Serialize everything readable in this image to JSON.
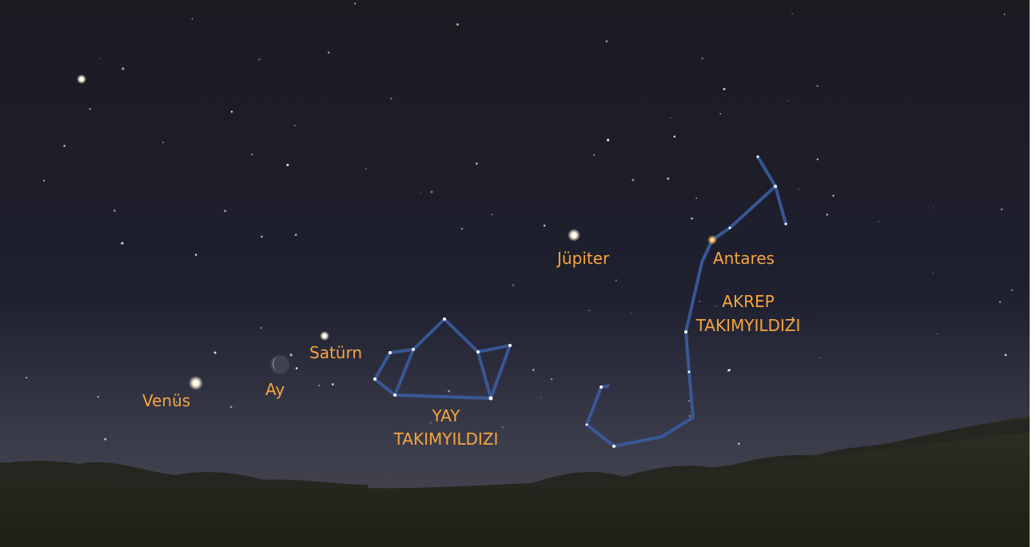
{
  "labels": {
    "venus": "Venüs",
    "moon": "Ay",
    "saturn": "Satürn",
    "jupiter": "Jüpiter",
    "antares": "Antares"
  },
  "constellations": {
    "scorpius": [
      "AKREP",
      "TAKIMYILDIZI"
    ],
    "sagittarius": [
      "YAY",
      "TAKIMYILDIZI"
    ]
  }
}
